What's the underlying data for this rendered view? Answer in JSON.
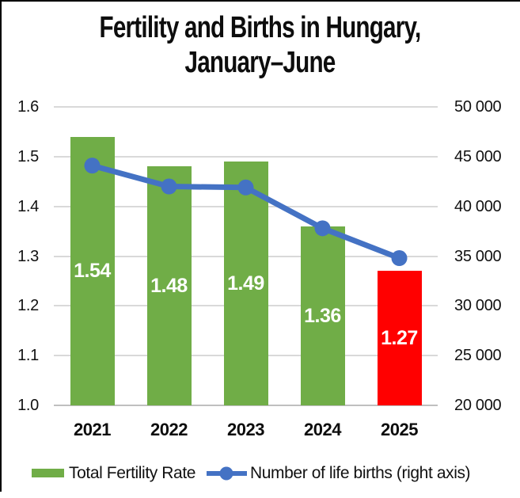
{
  "title": {
    "line1": "Fertility and Births in Hungary,",
    "line2": "January–June"
  },
  "chart_data": {
    "type": "combo-bar-line",
    "categories": [
      "2021",
      "2022",
      "2023",
      "2024",
      "2025"
    ],
    "series": [
      {
        "name": "Total Fertility Rate",
        "type": "bar",
        "axis": "left",
        "values": [
          1.54,
          1.48,
          1.49,
          1.36,
          1.27
        ],
        "data_labels": [
          "1.54",
          "1.48",
          "1.49",
          "1.36",
          "1.27"
        ],
        "bar_colors": [
          "#70AD47",
          "#70AD47",
          "#70AD47",
          "#70AD47",
          "#FF0000"
        ],
        "label_color": "#FFFFFF"
      },
      {
        "name": "Number of life births (right axis)",
        "type": "line",
        "axis": "right",
        "values": [
          44100,
          42000,
          41900,
          37800,
          34800
        ],
        "color": "#4472C4"
      }
    ],
    "left_axis": {
      "min": 1.0,
      "max": 1.6,
      "tick_labels": [
        "1.6",
        "1.5",
        "1.4",
        "1.3",
        "1.2",
        "1.1",
        "1.0"
      ]
    },
    "right_axis": {
      "min": 20000,
      "max": 50000,
      "tick_labels": [
        "50 000",
        "45 000",
        "40 000",
        "35 000",
        "30 000",
        "25 000",
        "20 000"
      ]
    },
    "grid": true,
    "legend_position": "bottom",
    "colors": {
      "gridline": "#D9D9D9",
      "axis_line": "#BFBFBF",
      "bar_green": "#70AD47",
      "bar_red": "#FF0000",
      "line_blue": "#4472C4"
    }
  },
  "legend": {
    "items": [
      {
        "label": "Total Fertility Rate",
        "swatch": "bar",
        "color": "#70AD47"
      },
      {
        "label": "Number of life births (right axis)",
        "swatch": "line-marker",
        "color": "#4472C4"
      }
    ]
  }
}
